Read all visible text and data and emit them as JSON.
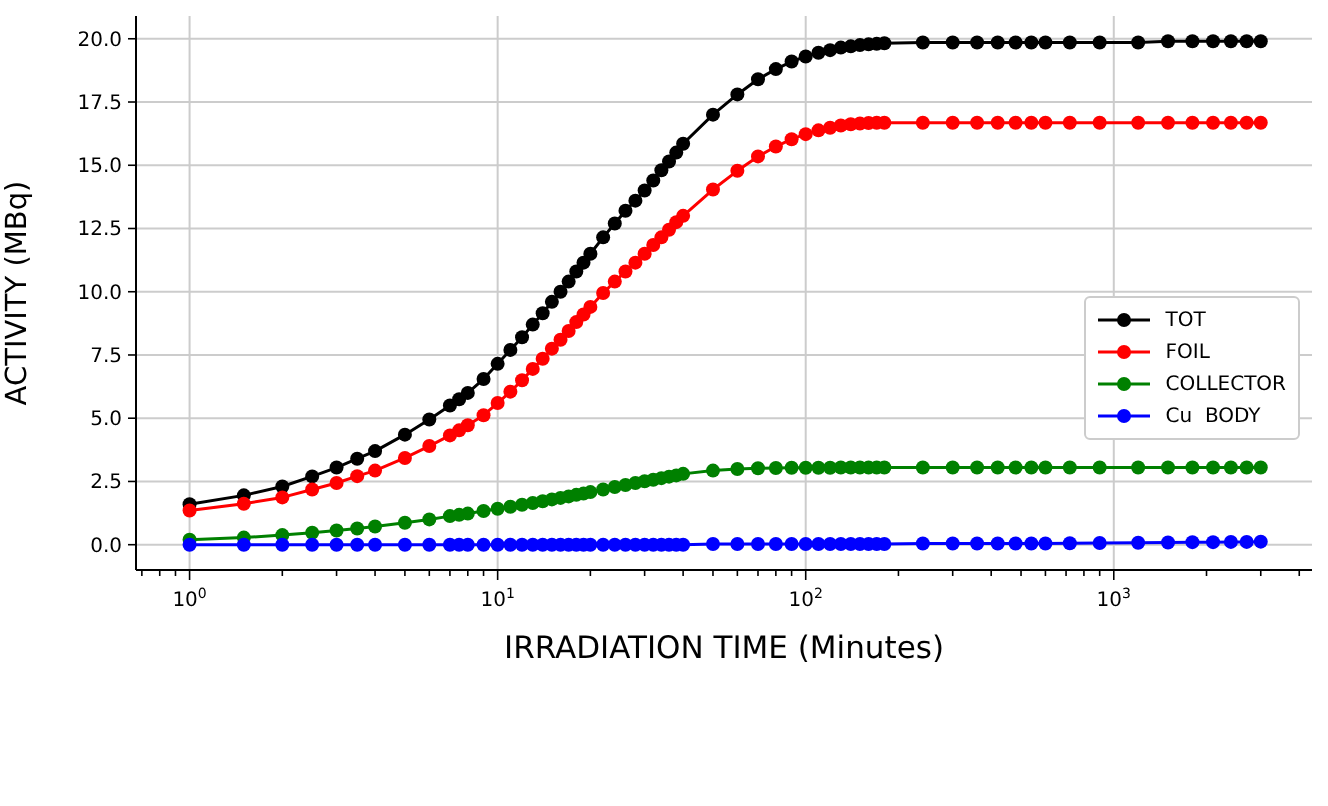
{
  "chart_data": {
    "type": "line",
    "xlabel": "IRRADIATION TIME (Minutes)",
    "ylabel": "ACTIVITY (MBq)",
    "log": "x",
    "grid": true,
    "legend": "right",
    "marker": "circle",
    "line_style": "solid",
    "xlim": [
      0.67,
      4400
    ],
    "xticks": [
      {
        "value": 0.7,
        "label": null
      },
      {
        "value": 0.8,
        "label": null
      },
      {
        "value": 0.9,
        "label": null
      },
      {
        "value": 1,
        "label": "10$^{0}$"
      },
      {
        "value": 2,
        "label": null
      },
      {
        "value": 3,
        "label": null
      },
      {
        "value": 4,
        "label": null
      },
      {
        "value": 5,
        "label": null
      },
      {
        "value": 6,
        "label": null
      },
      {
        "value": 7,
        "label": null
      },
      {
        "value": 8,
        "label": null
      },
      {
        "value": 9,
        "label": null
      },
      {
        "value": 10,
        "label": "10$^{1}$"
      },
      {
        "value": 20,
        "label": null
      },
      {
        "value": 30,
        "label": null
      },
      {
        "value": 40,
        "label": null
      },
      {
        "value": 50,
        "label": null
      },
      {
        "value": 60,
        "label": null
      },
      {
        "value": 70,
        "label": null
      },
      {
        "value": 80,
        "label": null
      },
      {
        "value": 90,
        "label": null
      },
      {
        "value": 100,
        "label": "10$^{2}$"
      },
      {
        "value": 200,
        "label": null
      },
      {
        "value": 300,
        "label": null
      },
      {
        "value": 400,
        "label": null
      },
      {
        "value": 500,
        "label": null
      },
      {
        "value": 600,
        "label": null
      },
      {
        "value": 700,
        "label": null
      },
      {
        "value": 800,
        "label": null
      },
      {
        "value": 900,
        "label": null
      },
      {
        "value": 1000,
        "label": "10$^{3}$"
      },
      {
        "value": 2000,
        "label": null
      },
      {
        "value": 3000,
        "label": null
      },
      {
        "value": 4000,
        "label": null
      }
    ],
    "ylim": [
      -1.0,
      20.9
    ],
    "yticks": [
      {
        "value": 0,
        "label": "0.0"
      },
      {
        "value": 2.5,
        "label": "2.5"
      },
      {
        "value": 5,
        "label": "5.0"
      },
      {
        "value": 7.5,
        "label": "7.5"
      },
      {
        "value": 10,
        "label": "10.0"
      },
      {
        "value": 12.5,
        "label": "12.5"
      },
      {
        "value": 15,
        "label": "15.0"
      },
      {
        "value": 17.5,
        "label": "17.5"
      },
      {
        "value": 20,
        "label": "20.0"
      }
    ],
    "x": [
      1,
      1.5,
      2,
      2.5,
      3,
      3.5,
      4,
      5,
      6,
      7,
      7.5,
      8,
      9,
      10,
      11,
      12,
      13,
      14,
      15,
      16,
      17,
      18,
      19,
      20,
      22,
      24,
      26,
      28,
      30,
      32,
      34,
      36,
      38,
      40,
      50,
      60,
      70,
      80,
      90,
      100,
      110,
      120,
      130,
      140,
      150,
      160,
      170,
      180,
      240,
      300,
      360,
      420,
      480,
      540,
      600,
      720,
      900,
      1200,
      1500,
      1800,
      2100,
      2400,
      2700,
      3000
    ],
    "series": [
      {
        "name": "TOT",
        "color": "#000000",
        "values": [
          1.6,
          1.95,
          2.3,
          2.7,
          3.05,
          3.4,
          3.7,
          4.35,
          4.95,
          5.5,
          5.75,
          6.0,
          6.55,
          7.15,
          7.7,
          8.2,
          8.7,
          9.15,
          9.6,
          10.0,
          10.4,
          10.8,
          11.15,
          11.5,
          12.15,
          12.7,
          13.2,
          13.6,
          14.0,
          14.4,
          14.8,
          15.15,
          15.5,
          15.85,
          17.0,
          17.8,
          18.4,
          18.8,
          19.1,
          19.3,
          19.45,
          19.55,
          19.65,
          19.7,
          19.75,
          19.78,
          19.8,
          19.82,
          19.85,
          19.85,
          19.85,
          19.85,
          19.85,
          19.85,
          19.85,
          19.85,
          19.85,
          19.85,
          19.9,
          19.9,
          19.9,
          19.9,
          19.9,
          19.9
        ]
      },
      {
        "name": "FOIL",
        "color": "#ff0000",
        "values": [
          1.35,
          1.62,
          1.87,
          2.18,
          2.44,
          2.71,
          2.93,
          3.43,
          3.9,
          4.32,
          4.52,
          4.72,
          5.12,
          5.6,
          6.05,
          6.5,
          6.95,
          7.35,
          7.75,
          8.1,
          8.45,
          8.8,
          9.1,
          9.4,
          9.95,
          10.4,
          10.8,
          11.15,
          11.5,
          11.85,
          12.15,
          12.45,
          12.75,
          13.0,
          14.04,
          14.78,
          15.35,
          15.74,
          16.03,
          16.23,
          16.38,
          16.48,
          16.57,
          16.62,
          16.65,
          16.67,
          16.68,
          16.68,
          16.68,
          16.68,
          16.68,
          16.68,
          16.68,
          16.68,
          16.68,
          16.68,
          16.68,
          16.68,
          16.68,
          16.68,
          16.68,
          16.68,
          16.68,
          16.68
        ]
      },
      {
        "name": "COLLECTOR",
        "color": "#008000",
        "values": [
          0.2,
          0.28,
          0.38,
          0.47,
          0.56,
          0.64,
          0.72,
          0.87,
          1.0,
          1.13,
          1.18,
          1.23,
          1.33,
          1.42,
          1.5,
          1.58,
          1.65,
          1.72,
          1.79,
          1.85,
          1.91,
          1.97,
          2.02,
          2.08,
          2.18,
          2.28,
          2.36,
          2.44,
          2.51,
          2.57,
          2.63,
          2.69,
          2.74,
          2.8,
          2.93,
          2.99,
          3.02,
          3.03,
          3.04,
          3.04,
          3.04,
          3.04,
          3.05,
          3.05,
          3.05,
          3.05,
          3.05,
          3.05,
          3.05,
          3.05,
          3.05,
          3.05,
          3.05,
          3.05,
          3.05,
          3.05,
          3.05,
          3.05,
          3.05,
          3.05,
          3.05,
          3.05,
          3.05,
          3.05
        ]
      },
      {
        "name": "Cu  BODY",
        "color": "#0000ff",
        "values": [
          0.0,
          0.0,
          0.0,
          0.0,
          0.0,
          0.0,
          0.0,
          0.0,
          0.0,
          0.0,
          0.0,
          0.0,
          0.0,
          0.0,
          0.0,
          0.0,
          0.0,
          0.0,
          0.0,
          0.0,
          0.0,
          0.0,
          0.0,
          0.0,
          0.0,
          0.0,
          0.0,
          0.0,
          0.0,
          0.0,
          0.0,
          0.0,
          0.0,
          0.0,
          0.03,
          0.03,
          0.03,
          0.03,
          0.03,
          0.03,
          0.03,
          0.03,
          0.03,
          0.03,
          0.03,
          0.03,
          0.03,
          0.03,
          0.05,
          0.05,
          0.05,
          0.05,
          0.05,
          0.05,
          0.05,
          0.06,
          0.07,
          0.08,
          0.09,
          0.1,
          0.1,
          0.11,
          0.11,
          0.12
        ]
      }
    ]
  }
}
